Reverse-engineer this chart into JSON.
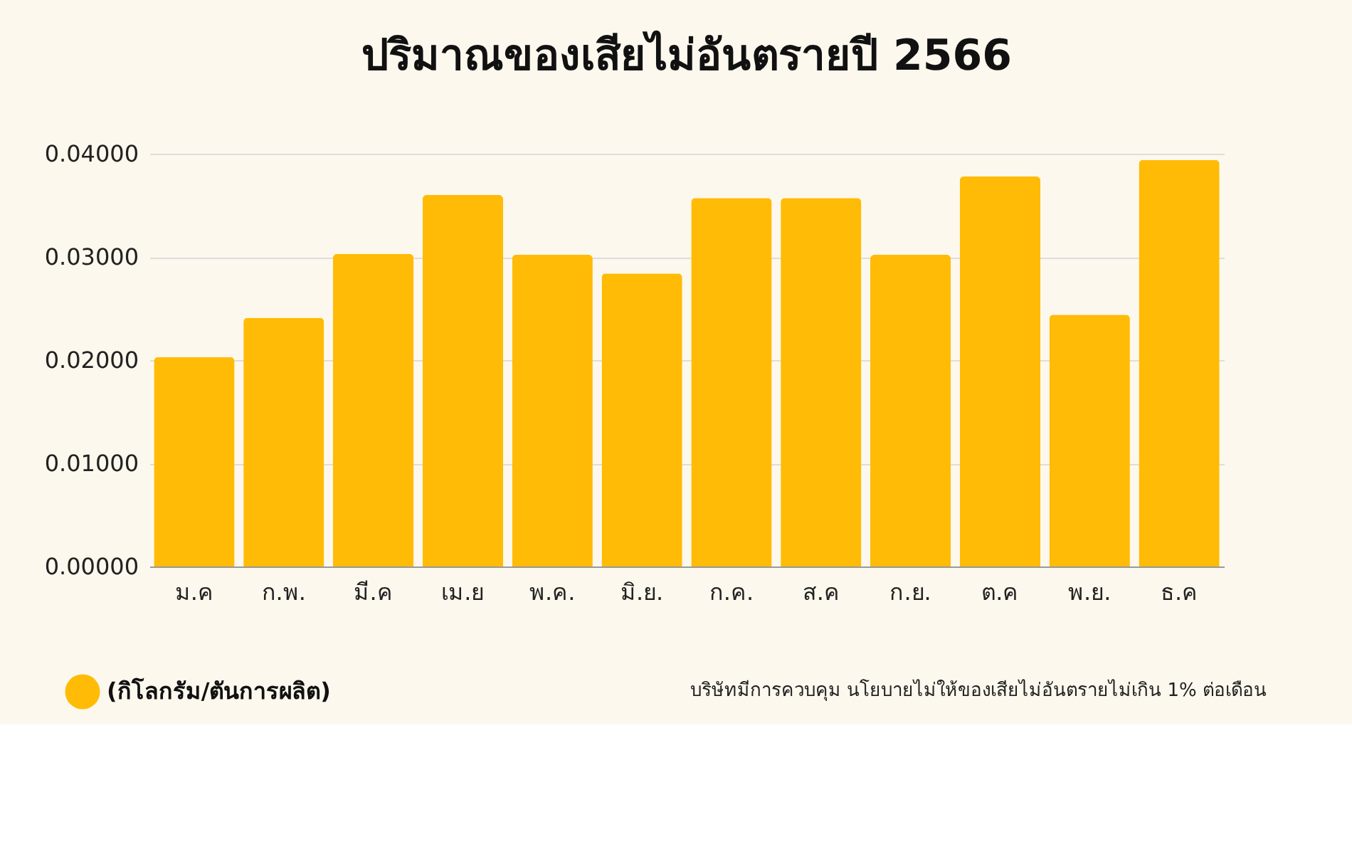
{
  "chart_data": {
    "type": "bar",
    "title": "ปริมาณของเสียไม่อันตรายปี 2566",
    "categories": [
      "ม.ค",
      "ก.พ.",
      "มี.ค",
      "เม.ย",
      "พ.ค.",
      "มิ.ย.",
      "ก.ค.",
      "ส.ค",
      "ก.ย.",
      "ต.ค",
      "พ.ย.",
      "ธ.ค"
    ],
    "series": [
      {
        "name": "(กิโลกรัม/ตันการผลิต)",
        "color": "#ffbb05",
        "values": [
          0.0203,
          0.0241,
          0.0303,
          0.036,
          0.0302,
          0.0284,
          0.0357,
          0.0357,
          0.0302,
          0.0378,
          0.0244,
          0.0394
        ]
      }
    ],
    "ylim": [
      0,
      0.04
    ],
    "yticks": [
      {
        "value": 0,
        "label": "0.00000"
      },
      {
        "value": 0.01,
        "label": "0.01000"
      },
      {
        "value": 0.02,
        "label": "0.02000"
      },
      {
        "value": 0.03,
        "label": "0.03000"
      },
      {
        "value": 0.04,
        "label": "0.04000"
      }
    ],
    "grid": "y",
    "legend": "bottom left",
    "annotations": [
      "บริษัทมีการควบคุม นโยบายไม่ให้ของเสียไม่อันตรายไม่เกิน 1% ต่อเดือน"
    ]
  }
}
